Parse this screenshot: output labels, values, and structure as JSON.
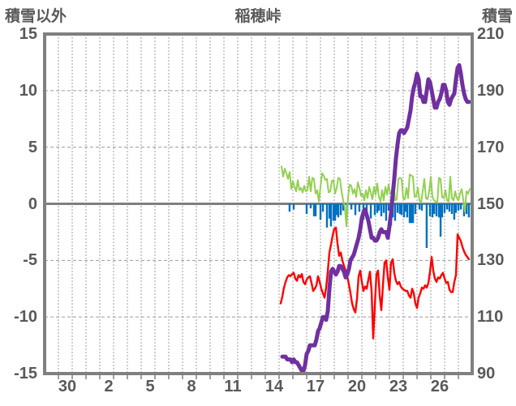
{
  "header": {
    "left_axis_title": "積雪以外",
    "chart_title": "稲穂峠",
    "right_axis_title": "積雪"
  },
  "colors": {
    "frame": "#808080",
    "zero_line": "#7f7f7f",
    "gridline": "#9c9c9c",
    "text": "#595959",
    "bar_series": "#0070C0",
    "green_series": "#92D050",
    "red_series": "#FF0000",
    "purple_series": "#7030A0"
  },
  "chart_data": {
    "type": "line",
    "title": "稲穂峠",
    "grid": true,
    "legend": "none",
    "left_axis": {
      "title": "積雪以外",
      "ticks": [
        15,
        10,
        5,
        0,
        -5,
        -10,
        -15
      ],
      "range": [
        -15,
        15
      ]
    },
    "right_axis": {
      "title": "積雪",
      "ticks": [
        210,
        190,
        170,
        150,
        130,
        110,
        90
      ],
      "range": [
        90,
        210
      ]
    },
    "x_axis": {
      "labels": [
        "30",
        "2",
        "5",
        "8",
        "11",
        "14",
        "17",
        "20",
        "23",
        "26"
      ],
      "label_positions": [
        2,
        5,
        8,
        11,
        14,
        17,
        20,
        23,
        26,
        29
      ],
      "domain": [
        0,
        31
      ],
      "gridline_step": 1
    },
    "series": [
      {
        "id": "blue-bars",
        "kind": "bar",
        "axis": "left",
        "points": [
          [
            17.76,
            -0.7
          ],
          [
            18.06,
            -0.5
          ],
          [
            19.0,
            -0.9
          ],
          [
            19.29,
            -0.4
          ],
          [
            19.53,
            -1.1
          ],
          [
            19.65,
            -1.1
          ],
          [
            20.0,
            -1.4
          ],
          [
            20.18,
            -0.7
          ],
          [
            20.47,
            -2.1
          ],
          [
            20.65,
            -1.3
          ],
          [
            20.76,
            -2.0
          ],
          [
            20.94,
            -1.5
          ],
          [
            21.06,
            -1.5
          ],
          [
            21.18,
            -1.0
          ],
          [
            21.29,
            -1.2
          ],
          [
            21.47,
            -1.0
          ],
          [
            21.65,
            -0.6
          ],
          [
            21.94,
            -0.9
          ],
          [
            22.24,
            -0.5
          ],
          [
            22.53,
            -1.0
          ],
          [
            22.82,
            -0.7
          ],
          [
            23.12,
            -1.4
          ],
          [
            23.35,
            -0.9
          ],
          [
            23.65,
            -1.3
          ],
          [
            23.94,
            -1.0
          ],
          [
            24.12,
            -0.8
          ],
          [
            24.24,
            -0.6
          ],
          [
            24.41,
            -1.1
          ],
          [
            24.59,
            -0.8
          ],
          [
            24.76,
            -1.5
          ],
          [
            24.94,
            -0.6
          ],
          [
            25.12,
            -1.9
          ],
          [
            25.24,
            -1.2
          ],
          [
            25.41,
            -1.5
          ],
          [
            25.59,
            -0.8
          ],
          [
            25.76,
            -0.9
          ],
          [
            25.88,
            -1.0
          ],
          [
            26.06,
            -1.2
          ],
          [
            26.18,
            -0.7
          ],
          [
            26.29,
            -1.2
          ],
          [
            26.47,
            -1.7
          ],
          [
            26.59,
            -1.7
          ],
          [
            26.71,
            -1.7
          ],
          [
            26.88,
            -0.9
          ],
          [
            27.18,
            -0.5
          ],
          [
            27.35,
            -0.6
          ],
          [
            27.7,
            -3.9
          ],
          [
            27.94,
            -1.1
          ],
          [
            28.12,
            -1.2
          ],
          [
            28.24,
            -0.9
          ],
          [
            28.41,
            -1.1
          ],
          [
            28.59,
            -1.2
          ],
          [
            28.71,
            -2.9
          ],
          [
            28.82,
            -1.2
          ],
          [
            29.0,
            -0.8
          ],
          [
            29.18,
            -0.5
          ],
          [
            29.35,
            -0.7
          ],
          [
            29.53,
            -0.9
          ],
          [
            29.7,
            -1.4
          ],
          [
            29.82,
            -0.8
          ],
          [
            30.0,
            -0.6
          ],
          [
            30.18,
            -0.5
          ],
          [
            30.41,
            -1.1
          ],
          [
            30.59,
            -0.9
          ],
          [
            30.76,
            -1.2
          ]
        ]
      },
      {
        "id": "green-line",
        "kind": "line",
        "axis": "left",
        "x_start": 17.176,
        "x_step": 0.11765,
        "values": [
          3.3,
          2.4,
          3.1,
          2.7,
          2.2,
          2.8,
          1.3,
          2.0,
          1.5,
          1.1,
          2.1,
          1.2,
          1.4,
          1.0,
          1.6,
          1.1,
          1.2,
          2.4,
          1.1,
          2.3,
          2.2,
          0.9,
          1.2,
          0.2,
          1.5,
          2.7,
          2.5,
          2.1,
          2.2,
          1.0,
          1.1,
          2.0,
          2.1,
          0.9,
          1.4,
          2.3,
          2.2,
          1.1,
          0.3,
          -0.3,
          -2.0,
          0.6,
          1.7,
          1.6,
          0.9,
          1.3,
          0.6,
          1.9,
          1.4,
          0.7,
          0.9,
          0.3,
          1.2,
          0.5,
          1.5,
          1.0,
          0.4,
          1.5,
          0.8,
          1.8,
          0.6,
          0.2,
          1.2,
          0.3,
          1.5,
          0.8,
          1.7,
          0.9,
          1.0,
          2.0,
          0.3,
          0.4,
          2.2,
          2.3,
          2.2,
          0.5,
          0.4,
          1.4,
          0.5,
          2.6,
          2.5,
          2.4,
          0.6,
          0.7,
          1.4,
          0.3,
          0.1,
          1.1,
          2.2,
          0.5,
          0.4,
          1.1,
          2.4,
          0.6,
          0.3,
          0.2,
          0.1,
          2.3,
          2.2,
          0.6,
          0.5,
          1.2,
          0.3,
          0.2,
          2.4,
          0.5,
          0.3,
          1.1,
          0.5,
          0.3,
          0.9,
          1.3,
          0.4,
          -0.7,
          1.1,
          0.9,
          1.3
        ]
      },
      {
        "id": "red-line",
        "kind": "line",
        "axis": "left",
        "x_start": 17.118,
        "x_step": 0.11765,
        "values": [
          -8.8,
          -8.2,
          -7.4,
          -6.9,
          -6.5,
          -6.3,
          -6.4,
          -6.2,
          -6.1,
          -6.6,
          -6.8,
          -6.3,
          -6.5,
          -6.2,
          -6.9,
          -7.1,
          -6.7,
          -6.5,
          -6.4,
          -7.0,
          -7.7,
          -7.5,
          -7.2,
          -6.4,
          -6.9,
          -7.5,
          -7.9,
          -8.3,
          -7.4,
          -6.0,
          -4.3,
          -3.6,
          -2.8,
          -2.2,
          -2.1,
          -3.5,
          -4.6,
          -4.3,
          -5.0,
          -5.5,
          -5.9,
          -6.4,
          -7.1,
          -7.9,
          -8.8,
          -9.3,
          -9.6,
          -8.4,
          -6.4,
          -5.9,
          -6.9,
          -7.7,
          -7.3,
          -7.5,
          -6.7,
          -6.0,
          -7.7,
          -11.9,
          -9.0,
          -6.2,
          -5.9,
          -8.1,
          -9.4,
          -7.2,
          -5.2,
          -5.0,
          -6.5,
          -7.6,
          -5.2,
          -4.9,
          -6.1,
          -6.8,
          -7.1,
          -6.9,
          -7.3,
          -7.5,
          -7.6,
          -7.7,
          -7.7,
          -8.1,
          -8.3,
          -7.5,
          -7.9,
          -8.8,
          -9.2,
          -8.3,
          -7.9,
          -7.4,
          -7.5,
          -7.2,
          -7.4,
          -7.0,
          -6.0,
          -4.7,
          -5.9,
          -6.6,
          -6.9,
          -6.5,
          -6.6,
          -6.3,
          -6.1,
          -6.6,
          -7.0,
          -6.9,
          -7.6,
          -7.8,
          -7.8,
          -6.9,
          -6.3,
          -2.7,
          -3.0,
          -3.3,
          -3.8,
          -4.2,
          -4.5,
          -4.7,
          -4.9
        ]
      },
      {
        "id": "purple-line",
        "kind": "line",
        "axis": "right",
        "x_start": 17.235,
        "x_step": 0.11765,
        "values": [
          96,
          96,
          96,
          95,
          95,
          95,
          94,
          95,
          94,
          94,
          93,
          92,
          91,
          91,
          93,
          97,
          98,
          100,
          100,
          100,
          100,
          102,
          105,
          106,
          108,
          110,
          110,
          109,
          112,
          120,
          126,
          127,
          126,
          125,
          126,
          128,
          128,
          127,
          126,
          124,
          125,
          127,
          130,
          131,
          132,
          134,
          136,
          138,
          141,
          145,
          147,
          148,
          146,
          144,
          141,
          138,
          138,
          137,
          137,
          138,
          140,
          141,
          140,
          140,
          140,
          138,
          142,
          147,
          153,
          159,
          166,
          171,
          175,
          176,
          176,
          175,
          176,
          177,
          180,
          183,
          188,
          191,
          193,
          196,
          194,
          188,
          188,
          186,
          186,
          190,
          194,
          193,
          190,
          187,
          184,
          184,
          186,
          187,
          189,
          192,
          192,
          190,
          186,
          185,
          187,
          188,
          189,
          194,
          198,
          199,
          196,
          192,
          189,
          187,
          186,
          186
        ]
      }
    ]
  }
}
